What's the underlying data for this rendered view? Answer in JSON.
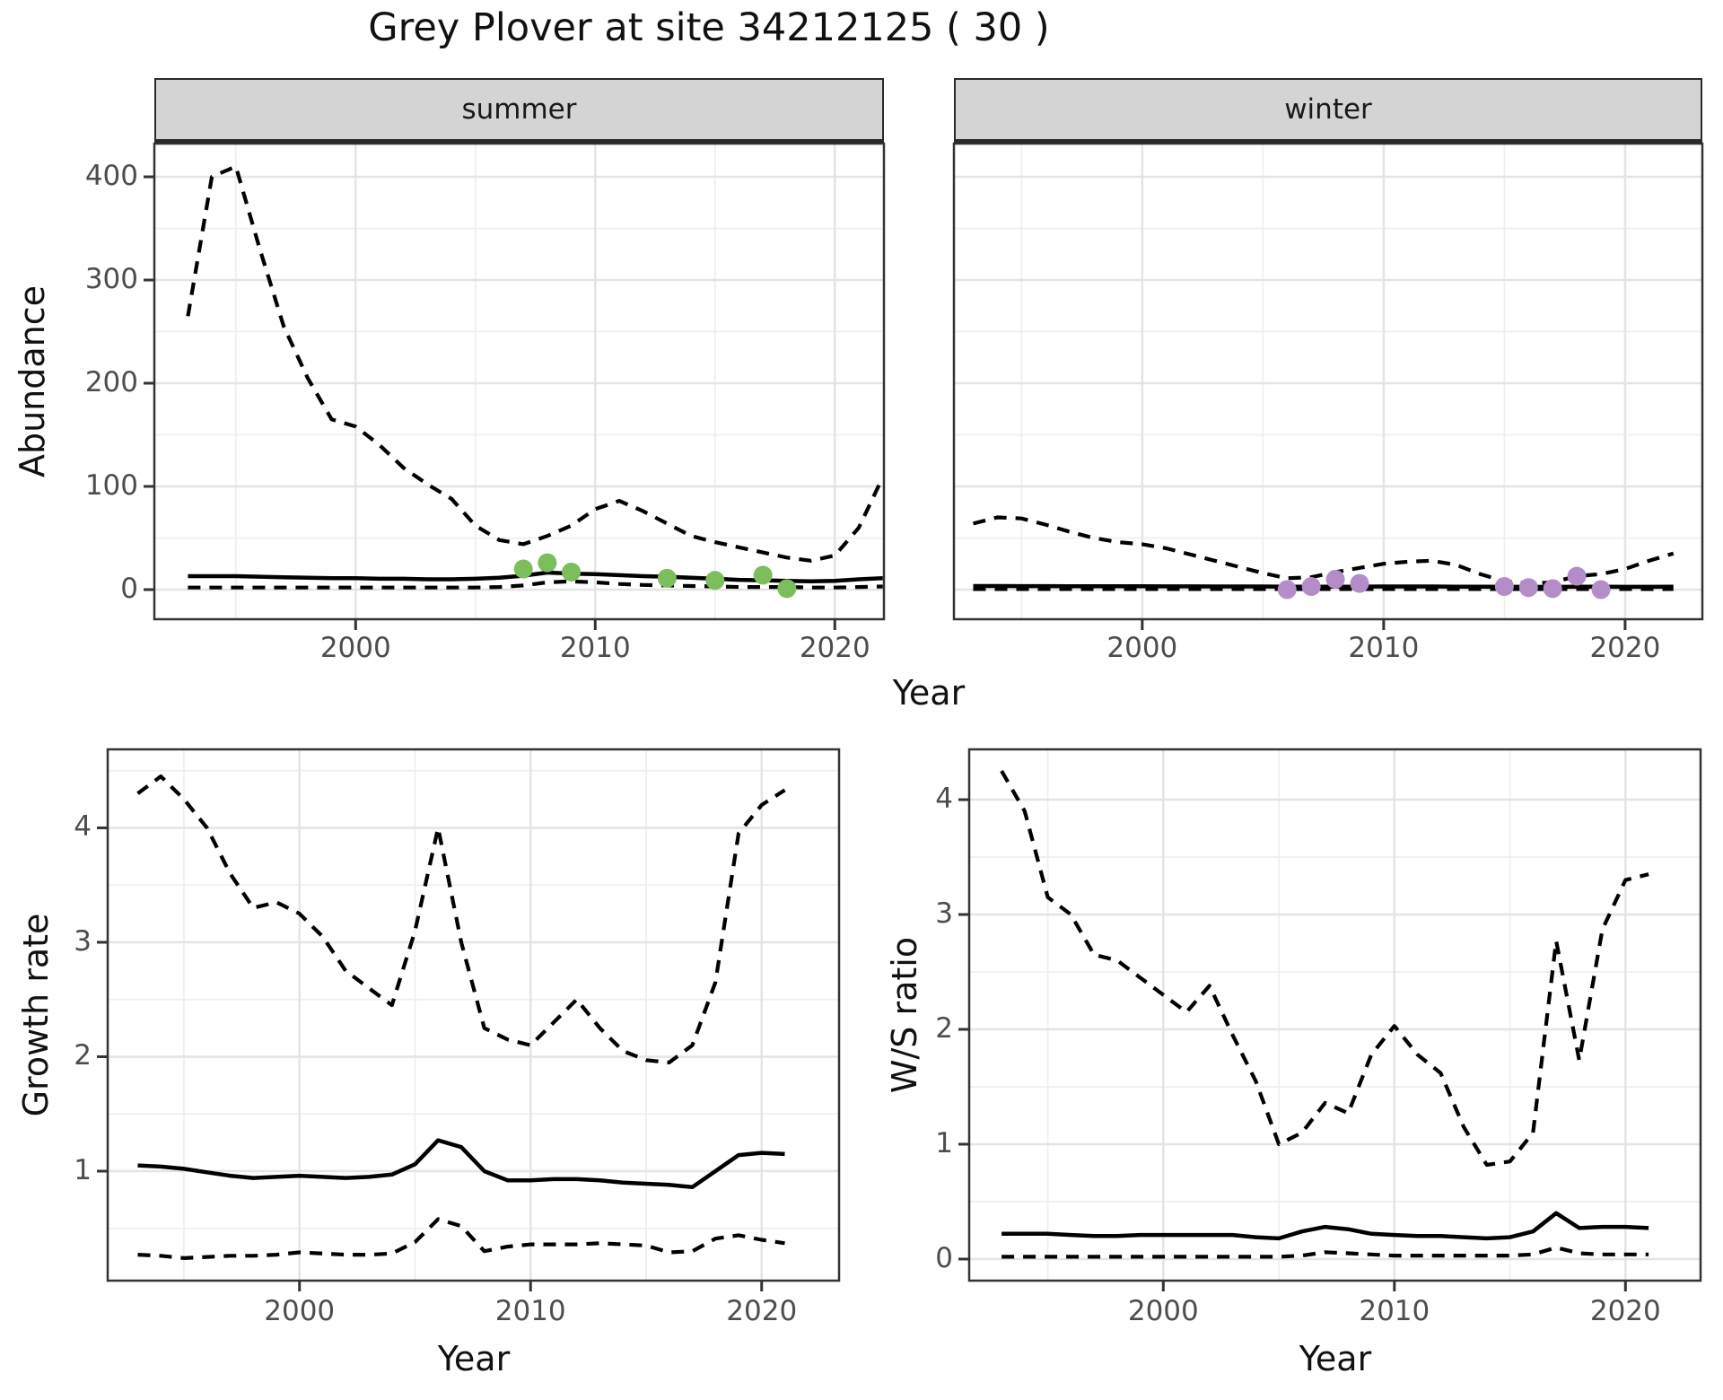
{
  "title": "Grey Plover at site 34212125 ( 30 )",
  "labels": {
    "xlabel": "Year",
    "ylabel_abundance": "Abundance",
    "ylabel_growth": "Growth rate",
    "ylabel_ws": "W/S ratio",
    "facet_summer": "summer",
    "facet_winter": "winter"
  },
  "colors": {
    "summer_point": "#7BBE5B",
    "winter_point": "#B48CC8",
    "line": "#000000",
    "strip_bg": "#D4D4D4",
    "panel_border": "#333333",
    "grid_major": "#E4E4E4",
    "grid_minor": "#EFEFEF",
    "axis_text": "#4D4D4D"
  },
  "chart_data": [
    {
      "id": "abundance_summer",
      "type": "line",
      "facet": "summer",
      "xlabel": "Year",
      "ylabel": "Abundance",
      "xlim": [
        1991.6,
        2022.05
      ],
      "ylim": [
        -28.7,
        432.2
      ],
      "xticks": [
        2000,
        2010,
        2020
      ],
      "xticks_minor": [
        1995,
        2005,
        2015
      ],
      "yticks": [
        0,
        100,
        200,
        300,
        400
      ],
      "yticks_minor": [
        50,
        150,
        250,
        350,
        450
      ],
      "show_y_labels": true,
      "grid": true,
      "series": [
        {
          "name": "upper_95ci",
          "style": "dashed",
          "x_start": 1993,
          "x_step": 1,
          "y": [
            265,
            400,
            410,
            330,
            255,
            205,
            165,
            158,
            140,
            118,
            102,
            88,
            62,
            48,
            44,
            52,
            62,
            78,
            86,
            76,
            64,
            52,
            46,
            41,
            36,
            31,
            28,
            33,
            60,
            109
          ]
        },
        {
          "name": "median_fit",
          "style": "solid",
          "x_start": 1993,
          "x_step": 1,
          "y": [
            13,
            13,
            13,
            12.5,
            12,
            11.5,
            11,
            11,
            10.5,
            10.5,
            10,
            10,
            10.5,
            11.5,
            13.5,
            16.5,
            15.5,
            15,
            14,
            13,
            12.5,
            11.5,
            10.5,
            9.5,
            9,
            8.5,
            8,
            8.5,
            10,
            11
          ]
        },
        {
          "name": "lower_95ci",
          "style": "dashed",
          "x_start": 1993,
          "x_step": 1,
          "y": [
            2,
            2,
            2,
            2,
            2,
            2,
            2,
            2,
            2,
            2,
            2,
            2,
            2,
            2.5,
            4,
            7,
            8,
            7,
            5.5,
            4.5,
            4,
            3.5,
            3,
            2.5,
            2.5,
            2.5,
            2,
            2,
            2.5,
            3
          ]
        },
        {
          "name": "observed_counts",
          "style": "points",
          "color": "#7BBE5B",
          "x": [
            2007,
            2008,
            2009,
            2013,
            2015,
            2017,
            2018
          ],
          "y": [
            20,
            26,
            17,
            11,
            9,
            14,
            1
          ]
        }
      ]
    },
    {
      "id": "abundance_winter",
      "type": "line",
      "facet": "winter",
      "xlabel": "Year",
      "ylabel": "Abundance",
      "xlim": [
        1992.2,
        2023.2
      ],
      "ylim": [
        -28.7,
        432.2
      ],
      "xticks": [
        2000,
        2010,
        2020
      ],
      "xticks_minor": [
        1995,
        2005,
        2015
      ],
      "yticks": [
        0,
        100,
        200,
        300,
        400
      ],
      "yticks_minor": [
        50,
        150,
        250,
        350,
        450
      ],
      "show_y_labels": false,
      "grid": true,
      "series": [
        {
          "name": "upper_95ci",
          "style": "dashed",
          "x_start": 1993,
          "x_step": 1,
          "y": [
            64,
            70,
            69,
            63,
            56,
            50,
            46,
            44,
            40,
            34,
            28,
            22,
            16,
            11,
            12,
            17,
            21,
            25,
            27,
            28,
            24,
            15,
            8,
            6,
            7,
            13,
            15,
            20,
            28,
            35
          ]
        },
        {
          "name": "median_fit",
          "style": "solid",
          "x_start": 1993,
          "x_step": 1,
          "y": [
            3.5,
            3.5,
            3.4,
            3.4,
            3.3,
            3.3,
            3.2,
            3.2,
            3.1,
            3.1,
            3,
            3,
            3,
            2.9,
            2.9,
            2.9,
            2.9,
            3,
            3,
            3,
            2.9,
            2.8,
            2.7,
            2.7,
            2.6,
            2.8,
            2.8,
            2.7,
            2.7,
            2.8
          ]
        },
        {
          "name": "lower_95ci",
          "style": "dashed",
          "x_start": 1993,
          "x_step": 1,
          "y": [
            0.5,
            0.5,
            0.5,
            0.5,
            0.5,
            0.5,
            0.5,
            0.5,
            0.5,
            0.5,
            0.5,
            0.5,
            0.5,
            0.5,
            0.5,
            0.5,
            0.5,
            0.5,
            0.5,
            0.5,
            0.5,
            0.5,
            0.5,
            0.5,
            0.5,
            0.5,
            0.5,
            0.5,
            0.5,
            0.5
          ]
        },
        {
          "name": "observed_counts",
          "style": "points",
          "color": "#B48CC8",
          "x": [
            2006,
            2007,
            2008,
            2009,
            2015,
            2016,
            2017,
            2018,
            2019
          ],
          "y": [
            0,
            3,
            10,
            6,
            3,
            2,
            1,
            13,
            0
          ]
        }
      ]
    },
    {
      "id": "growth_rate",
      "type": "line",
      "xlabel": "Year",
      "ylabel": "Growth rate",
      "xlim": [
        1991.7,
        2023.35
      ],
      "ylim": [
        0.043,
        4.686
      ],
      "xticks": [
        2000,
        2010,
        2020
      ],
      "xticks_minor": [
        1995,
        2005,
        2015
      ],
      "yticks": [
        1,
        2,
        3,
        4
      ],
      "yticks_minor": [
        0.5,
        1.5,
        2.5,
        3.5,
        4.5
      ],
      "show_y_labels": true,
      "grid": true,
      "series": [
        {
          "name": "upper_95ci",
          "style": "dashed",
          "x_start": 1993,
          "x_step": 1,
          "y": [
            4.3,
            4.45,
            4.25,
            4.0,
            3.6,
            3.3,
            3.35,
            3.25,
            3.05,
            2.75,
            2.6,
            2.45,
            3.1,
            4.0,
            3.0,
            2.25,
            2.15,
            2.1,
            2.3,
            2.5,
            2.25,
            2.05,
            1.97,
            1.95,
            2.1,
            2.65,
            3.95,
            4.2,
            4.33
          ]
        },
        {
          "name": "median_fit",
          "style": "solid",
          "x_start": 1993,
          "x_step": 1,
          "y": [
            1.05,
            1.04,
            1.02,
            0.99,
            0.96,
            0.94,
            0.95,
            0.96,
            0.95,
            0.94,
            0.95,
            0.97,
            1.06,
            1.27,
            1.21,
            1.0,
            0.92,
            0.92,
            0.93,
            0.93,
            0.92,
            0.9,
            0.89,
            0.88,
            0.86,
            1.0,
            1.14,
            1.16,
            1.15
          ]
        },
        {
          "name": "lower_95ci",
          "style": "dashed",
          "x_start": 1993,
          "x_step": 1,
          "y": [
            0.27,
            0.26,
            0.24,
            0.25,
            0.26,
            0.26,
            0.27,
            0.29,
            0.28,
            0.27,
            0.27,
            0.28,
            0.38,
            0.58,
            0.52,
            0.3,
            0.34,
            0.36,
            0.36,
            0.36,
            0.37,
            0.36,
            0.35,
            0.29,
            0.3,
            0.41,
            0.44,
            0.4,
            0.37
          ]
        }
      ]
    },
    {
      "id": "ws_ratio",
      "type": "line",
      "xlabel": "Year",
      "ylabel": "W/S ratio",
      "xlim": [
        1991.6,
        2023.25
      ],
      "ylim": [
        -0.188,
        4.438
      ],
      "xticks": [
        2000,
        2010,
        2020
      ],
      "xticks_minor": [
        1995,
        2005,
        2015
      ],
      "yticks": [
        0,
        1,
        2,
        3,
        4
      ],
      "yticks_minor": [
        0.5,
        1.5,
        2.5,
        3.5
      ],
      "show_y_labels": true,
      "grid": true,
      "series": [
        {
          "name": "upper_95ci",
          "style": "dashed",
          "x_start": 1993,
          "x_step": 1,
          "y": [
            4.25,
            3.9,
            3.15,
            3.0,
            2.65,
            2.6,
            2.45,
            2.3,
            2.15,
            2.38,
            1.95,
            1.55,
            1.0,
            1.1,
            1.36,
            1.27,
            1.78,
            2.03,
            1.78,
            1.62,
            1.15,
            0.82,
            0.85,
            1.1,
            2.77,
            1.73,
            2.87,
            3.3,
            3.35
          ]
        },
        {
          "name": "median_fit",
          "style": "solid",
          "x_start": 1993,
          "x_step": 1,
          "y": [
            0.22,
            0.22,
            0.22,
            0.21,
            0.2,
            0.2,
            0.21,
            0.21,
            0.21,
            0.21,
            0.21,
            0.19,
            0.18,
            0.24,
            0.28,
            0.26,
            0.22,
            0.21,
            0.2,
            0.2,
            0.19,
            0.18,
            0.19,
            0.24,
            0.4,
            0.27,
            0.28,
            0.28,
            0.27
          ]
        },
        {
          "name": "lower_95ci",
          "style": "dashed",
          "x_start": 1993,
          "x_step": 1,
          "y": [
            0.02,
            0.02,
            0.02,
            0.02,
            0.02,
            0.02,
            0.02,
            0.02,
            0.02,
            0.02,
            0.02,
            0.02,
            0.02,
            0.03,
            0.06,
            0.05,
            0.04,
            0.03,
            0.03,
            0.03,
            0.03,
            0.03,
            0.03,
            0.04,
            0.1,
            0.05,
            0.04,
            0.04,
            0.04
          ]
        }
      ]
    }
  ]
}
